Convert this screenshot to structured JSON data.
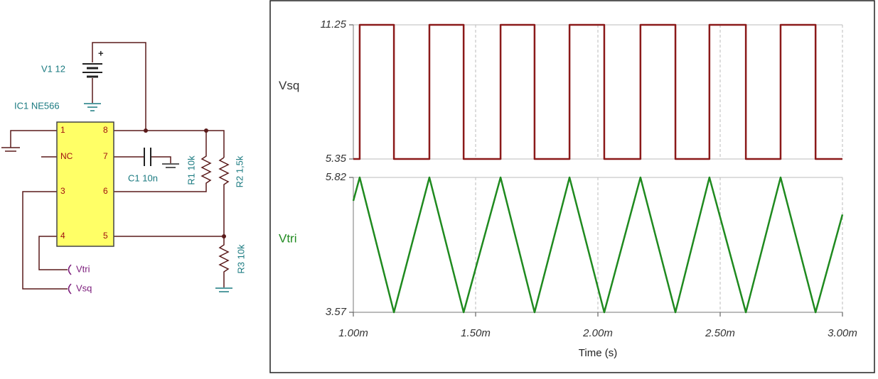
{
  "schematic": {
    "battery": "V1 12",
    "plus": "+",
    "ic": "IC1 NE566",
    "pins_left": [
      "1",
      "NC",
      "3",
      "4"
    ],
    "pins_right": [
      "8",
      "7",
      "6",
      "5"
    ],
    "c1": "C1 10n",
    "r1": "R1 10k",
    "r2": "R2 1,5k",
    "r3": "R3 10k",
    "probe_tri": "Vtri",
    "probe_sq": "Vsq"
  },
  "chart_data": [
    {
      "type": "line",
      "x": [
        0.001,
        0.001026,
        0.001026,
        0.001166,
        0.001166,
        0.001311,
        0.001311,
        0.001451,
        0.001451,
        0.001602,
        0.001602,
        0.001741,
        0.001741,
        0.001884,
        0.001884,
        0.002026,
        0.002026,
        0.002174,
        0.002174,
        0.002317,
        0.002317,
        0.002456,
        0.002456,
        0.002605,
        0.002605,
        0.002747,
        0.002747,
        0.00289,
        0.00289,
        0.003
      ],
      "series": [
        {
          "name": "Vsq",
          "color": "#8b1a1a",
          "values": [
            5.35,
            5.35,
            11.25,
            11.25,
            5.35,
            5.35,
            11.25,
            11.25,
            5.35,
            5.35,
            11.25,
            11.25,
            5.35,
            5.35,
            11.25,
            11.25,
            5.35,
            5.35,
            11.25,
            11.25,
            5.35,
            5.35,
            11.25,
            11.25,
            5.35,
            5.35,
            11.25,
            11.25,
            5.35,
            5.35
          ]
        }
      ],
      "xlim": [
        0.001,
        0.003
      ],
      "ylim": [
        5.35,
        11.25
      ],
      "yticks": [
        11.25,
        5.35
      ],
      "grid": true
    },
    {
      "type": "line",
      "x": [
        0.001,
        0.001026,
        0.001166,
        0.001311,
        0.001451,
        0.001602,
        0.001741,
        0.001884,
        0.002026,
        0.002174,
        0.002317,
        0.002456,
        0.002605,
        0.002747,
        0.00289,
        0.003
      ],
      "series": [
        {
          "name": "Vtri",
          "color": "#1f8a1f",
          "values": [
            5.43,
            5.82,
            3.57,
            5.82,
            3.57,
            5.82,
            3.57,
            5.82,
            3.57,
            5.82,
            3.57,
            5.82,
            3.57,
            5.82,
            3.57,
            5.2
          ]
        }
      ],
      "xlim": [
        0.001,
        0.003
      ],
      "ylim": [
        3.57,
        5.82
      ],
      "yticks": [
        5.82,
        3.57
      ],
      "xticks": [
        {
          "value": 0.001,
          "label": "1.00m"
        },
        {
          "value": 0.0015,
          "label": "1.50m"
        },
        {
          "value": 0.002,
          "label": "2.00m"
        },
        {
          "value": 0.0025,
          "label": "2.50m"
        },
        {
          "value": 0.003,
          "label": "3.00m"
        }
      ],
      "x_label": "Time (s)",
      "grid": true
    }
  ]
}
